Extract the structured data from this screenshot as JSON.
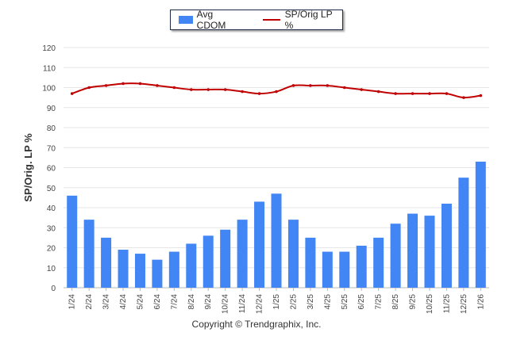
{
  "chart_data": {
    "type": "bar+line",
    "ylabel": "SP/Orig. LP %",
    "ylim": [
      0,
      120
    ],
    "yticks": [
      0,
      10,
      20,
      30,
      40,
      50,
      60,
      70,
      80,
      90,
      100,
      110,
      120
    ],
    "categories": [
      "1/24",
      "2/24",
      "3/24",
      "4/24",
      "5/24",
      "6/24",
      "7/24",
      "8/24",
      "9/24",
      "10/24",
      "11/24",
      "12/24",
      "1/25",
      "2/25",
      "3/25",
      "4/25",
      "5/25",
      "6/25",
      "7/25",
      "8/25",
      "9/25",
      "10/25",
      "11/25",
      "12/25",
      "1/26"
    ],
    "series": [
      {
        "name": "Avg CDOM",
        "kind": "bar",
        "color": "#4285f4",
        "values": [
          46,
          34,
          25,
          19,
          17,
          14,
          18,
          22,
          26,
          29,
          34,
          43,
          47,
          34,
          25,
          18,
          18,
          21,
          25,
          32,
          37,
          36,
          42,
          55,
          63
        ]
      },
      {
        "name": "SP/Orig LP %",
        "kind": "line",
        "color": "#c00000",
        "values": [
          97,
          100,
          101,
          102,
          102,
          101,
          100,
          99,
          99,
          99,
          98,
          97,
          98,
          101,
          101,
          101,
          100,
          99,
          98,
          97,
          97,
          97,
          97,
          95,
          96
        ]
      }
    ],
    "legend": {
      "position": "top-center"
    }
  },
  "footer": {
    "copyright": "Copyright © Trendgraphix, Inc."
  }
}
